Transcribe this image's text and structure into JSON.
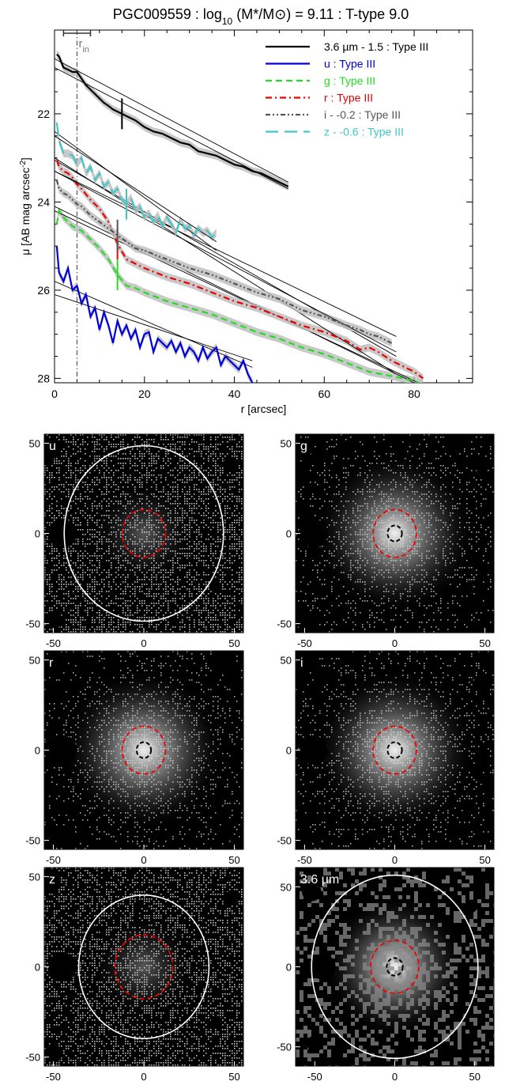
{
  "figure": {
    "title": "PGC009559 : log10 (M*/M⊙) = 9.11 : T-type 9.0"
  },
  "chart_data": [
    {
      "type": "line",
      "title": "PGC009559 : log10 (M*/M⊙) = 9.11 : T-type 9.0",
      "xlabel": "r [arcsec]",
      "ylabel": "μ [AB mag arcsec-2]",
      "xlim": [
        0,
        93
      ],
      "ylim": [
        28.1,
        20.1
      ],
      "y_inverted": true,
      "xticks": [
        0,
        20,
        40,
        60,
        80
      ],
      "yticks": [
        22,
        24,
        26,
        28
      ],
      "rin_label": "rin",
      "rin_value": 5,
      "legend_position": "top-right",
      "series": [
        {
          "name": "3.6 µm - 1.5 : Type III",
          "color": "#000000",
          "dash": "solid",
          "break_r": 15,
          "fits": [
            [
              0,
              20.95,
              52,
              23.7
            ],
            [
              0,
              20.75,
              52,
              23.55
            ]
          ],
          "x": [
            0.5,
            1,
            2,
            3,
            4,
            5,
            6,
            7,
            8,
            9,
            10,
            11,
            12,
            13,
            14,
            15,
            16,
            17,
            18,
            20,
            22,
            24,
            26,
            28,
            30,
            32,
            34,
            36,
            38,
            40,
            42,
            44,
            46,
            48,
            50,
            52
          ],
          "y": [
            20.65,
            20.7,
            20.95,
            21.0,
            21.05,
            21.05,
            21.2,
            21.35,
            21.45,
            21.55,
            21.65,
            21.75,
            21.82,
            21.9,
            21.95,
            22.0,
            22.05,
            22.1,
            22.15,
            22.3,
            22.4,
            22.45,
            22.55,
            22.65,
            22.7,
            22.85,
            22.9,
            22.95,
            23.05,
            23.15,
            23.2,
            23.3,
            23.35,
            23.45,
            23.55,
            23.65
          ]
        },
        {
          "name": "u : Type III",
          "color": "#0000dd",
          "dash": "solid",
          "break_r": null,
          "fits": [
            [
              0,
              26.1,
              44,
              27.6
            ],
            [
              0,
              25.8,
              44,
              27.75
            ]
          ],
          "x": [
            0.5,
            1,
            2,
            3,
            4,
            5,
            6,
            7,
            8,
            9,
            10,
            11,
            12,
            13,
            14,
            15,
            16,
            17,
            18,
            19,
            20,
            21,
            22,
            23,
            24,
            25,
            26,
            27,
            28,
            29,
            30,
            31,
            32,
            33,
            34,
            35,
            36,
            37,
            38,
            39,
            40,
            41,
            42,
            43,
            44
          ],
          "y": [
            25.0,
            25.6,
            25.8,
            25.5,
            26.0,
            25.9,
            26.3,
            26.1,
            26.6,
            26.4,
            26.9,
            26.5,
            26.8,
            27.2,
            26.7,
            27.0,
            26.8,
            27.1,
            26.9,
            27.3,
            27.0,
            26.95,
            27.4,
            27.1,
            27.2,
            27.3,
            27.15,
            27.4,
            27.2,
            27.5,
            27.3,
            27.4,
            27.6,
            27.3,
            27.55,
            27.4,
            27.3,
            27.7,
            27.5,
            27.6,
            27.7,
            27.8,
            27.6,
            27.9,
            28.1
          ]
        },
        {
          "name": "g : Type III",
          "color": "#22dd22",
          "dash": "dashed",
          "break_r": 14,
          "fits": [
            [
              0,
              24.2,
              82,
              28.15
            ],
            [
              0,
              24.1,
              82,
              28.2
            ]
          ],
          "x": [
            0.5,
            1,
            2,
            3,
            4,
            5,
            6,
            8,
            10,
            12,
            14,
            16,
            18,
            20,
            25,
            30,
            35,
            40,
            45,
            50,
            55,
            60,
            65,
            70,
            75,
            80,
            82
          ],
          "y": [
            24.5,
            24.2,
            24.35,
            24.45,
            24.55,
            24.6,
            24.65,
            24.85,
            25.05,
            25.3,
            25.65,
            25.9,
            25.95,
            26.05,
            26.25,
            26.4,
            26.55,
            26.75,
            26.95,
            27.1,
            27.3,
            27.45,
            27.65,
            27.85,
            27.95,
            28.05,
            28.15
          ]
        },
        {
          "name": "r : Type III",
          "color": "#ee0000",
          "dash": "dashdot",
          "break_r": 14,
          "fits": [
            [
              0,
              23.0,
              76,
              27.9
            ],
            [
              0,
              23.05,
              76,
              27.5
            ]
          ],
          "x": [
            0.5,
            1,
            2,
            3,
            4,
            5,
            6,
            8,
            10,
            12,
            14,
            16,
            18,
            20,
            25,
            30,
            35,
            40,
            45,
            50,
            55,
            60,
            65,
            68,
            70,
            72,
            75,
            78,
            80,
            82
          ],
          "y": [
            23.05,
            23.2,
            23.3,
            23.35,
            23.45,
            23.6,
            23.7,
            23.95,
            24.15,
            24.45,
            24.95,
            25.3,
            25.4,
            25.5,
            25.7,
            25.85,
            26.05,
            26.25,
            26.4,
            26.6,
            26.8,
            26.95,
            27.15,
            27.35,
            27.3,
            27.4,
            27.6,
            27.75,
            27.85,
            28.0
          ]
        },
        {
          "name": "i - -0.2 : Type III",
          "color": "#555555",
          "dash": "dashdotdot",
          "break_r": 14,
          "fits": [
            [
              0,
              23.3,
              76,
              27.4
            ],
            [
              0,
              23.3,
              76,
              27.05
            ]
          ],
          "x": [
            0.5,
            1,
            2,
            3,
            4,
            5,
            6,
            8,
            10,
            12,
            14,
            16,
            18,
            20,
            25,
            30,
            35,
            40,
            45,
            50,
            55,
            60,
            65,
            68,
            70,
            72,
            75
          ],
          "y": [
            23.5,
            23.7,
            23.8,
            23.85,
            23.95,
            24.05,
            24.1,
            24.3,
            24.45,
            24.6,
            24.75,
            24.9,
            25.05,
            25.1,
            25.3,
            25.5,
            25.65,
            25.85,
            26.05,
            26.2,
            26.45,
            26.6,
            26.8,
            26.9,
            27.0,
            27.05,
            27.2
          ]
        },
        {
          "name": "z - -0.6 : Type III",
          "color": "#40c8c8",
          "dash": "longdash",
          "break_r": 16,
          "fits": [
            [
              0,
              22.4,
              36,
              25.1
            ],
            [
              0,
              22.5,
              36,
              24.9
            ]
          ],
          "x": [
            0.5,
            1,
            2,
            3,
            4,
            5,
            6,
            7,
            8,
            9,
            10,
            11,
            12,
            13,
            14,
            15,
            16,
            17,
            18,
            19,
            20,
            21,
            22,
            23,
            24,
            25,
            26,
            27,
            28,
            29,
            30,
            31,
            32,
            33,
            34,
            35,
            36
          ],
          "y": [
            22.2,
            22.6,
            22.9,
            22.9,
            22.95,
            23.15,
            23.0,
            23.35,
            23.2,
            23.5,
            23.35,
            23.65,
            23.55,
            23.8,
            23.7,
            23.95,
            24.05,
            23.9,
            24.2,
            24.1,
            24.35,
            24.25,
            24.45,
            24.3,
            24.55,
            24.35,
            24.5,
            24.7,
            24.4,
            24.6,
            24.55,
            24.75,
            24.6,
            24.7,
            24.65,
            24.8,
            24.7
          ]
        }
      ]
    },
    {
      "type": "heatmap",
      "panels": [
        {
          "label": "u",
          "outer_r": 44,
          "red_r": 12,
          "black_r": 0,
          "style": "noisy",
          "xlim": [
            -55,
            55
          ],
          "ylim": [
            -55,
            55
          ],
          "xticks": [
            -50,
            0,
            50
          ],
          "yticks": [
            -50,
            0,
            50
          ]
        },
        {
          "label": "g",
          "outer_r": 0,
          "red_r": 12,
          "black_r": 4,
          "style": "smooth",
          "xlim": [
            -55,
            55
          ],
          "ylim": [
            -55,
            55
          ],
          "xticks": [
            -50,
            0,
            50
          ],
          "yticks": [
            -50,
            0,
            50
          ]
        },
        {
          "label": "r",
          "outer_r": 76,
          "red_r": 12,
          "black_r": 4,
          "style": "smooth",
          "xlim": [
            -55,
            55
          ],
          "ylim": [
            -55,
            55
          ],
          "xticks": [
            -50,
            0,
            50
          ],
          "yticks": [
            -50,
            0,
            50
          ]
        },
        {
          "label": "i",
          "outer_r": 76,
          "red_r": 12,
          "black_r": 4,
          "style": "smooth",
          "xlim": [
            -55,
            55
          ],
          "ylim": [
            -55,
            55
          ],
          "xticks": [
            -50,
            0,
            50
          ],
          "yticks": [
            -50,
            0,
            50
          ]
        },
        {
          "label": "z",
          "outer_r": 36,
          "red_r": 16,
          "black_r": 0,
          "style": "noisy",
          "xlim": [
            -55,
            55
          ],
          "ylim": [
            -55,
            55
          ],
          "xticks": [
            -50,
            0,
            50
          ],
          "yticks": [
            -50,
            0,
            50
          ]
        },
        {
          "label": "3.6 µm",
          "outer_r": 52,
          "red_r": 15,
          "black_r": 5,
          "style": "blocky",
          "xlim": [
            -62,
            62
          ],
          "ylim": [
            -62,
            62
          ],
          "xticks": [
            -50,
            0,
            50
          ],
          "yticks": [
            -50,
            0,
            50
          ]
        }
      ]
    }
  ]
}
